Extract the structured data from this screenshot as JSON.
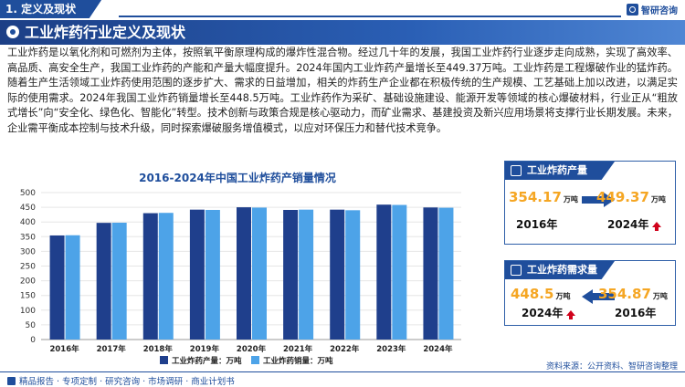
{
  "section": {
    "label": "1. 定义及现状"
  },
  "brand": {
    "name": "智研咨询"
  },
  "page_title": "工业炸药行业定义及现状",
  "paragraph": "工业炸药是以氧化剂和可燃剂为主体，按照氧平衡原理构成的爆炸性混合物。经过几十年的发展，我国工业炸药行业逐步走向成熟，实现了高效率、高品质、高安全生产，我国工业炸药的产能和产量大幅度提升。2024年国内工业炸药产量增长至449.37万吨。工业炸药是工程爆破作业的猛炸药。随着生产生活领域工业炸药使用范围的逐步扩大、需求的日益增加，相关的炸药生产企业都在积极传统的生产规模、工艺基础上加以改进，以满足实际的使用需求。2024年我国工业炸药销量增长至448.5万吨。工业炸药作为采矿、基础设施建设、能源开发等领域的核心爆破材料，行业正从“粗放式增长”向“安全化、绿色化、智能化”转型。技术创新与政策合规是核心驱动力，而矿业需求、基建投资及新兴应用场景将支撑行业长期发展。未来，企业需平衡成本控制与技术升级，同时探索爆破服务增值模式，以应对环保压力和替代技术竞争。",
  "chart_data": {
    "type": "bar",
    "title": "2016-2024年中国工业炸药产销量情况",
    "categories": [
      "2016年",
      "2017年",
      "2018年",
      "2019年",
      "2020年",
      "2021年",
      "2022年",
      "2023年",
      "2024年"
    ],
    "series": [
      {
        "name": "工业炸药产量：万吨",
        "values": [
          354.17,
          397.0,
          430.0,
          442.0,
          450.0,
          441.0,
          442.0,
          459.0,
          449.37
        ]
      },
      {
        "name": "工业炸药销量：万吨",
        "values": [
          354.87,
          397.5,
          431.0,
          441.0,
          449.0,
          442.0,
          440.0,
          458.0,
          448.5
        ]
      }
    ],
    "ylim": [
      0,
      500
    ],
    "yticks": [
      "0",
      "50",
      "100",
      "150",
      "200",
      "250",
      "300",
      "350",
      "400",
      "450",
      "500"
    ],
    "colors": [
      "#1f3f8c",
      "#4da3e8"
    ]
  },
  "production_card": {
    "title": "工业炸药产量",
    "left_value": "354.17",
    "left_unit": "万吨",
    "left_year": "2016年",
    "right_value": "449.37",
    "right_unit": "万吨",
    "right_year": "2024年"
  },
  "sales_card": {
    "title": "工业炸药需求量",
    "left_value": "448.5",
    "left_unit": "万吨",
    "left_year": "2024年",
    "right_value": "354.87",
    "right_unit": "万吨",
    "right_year": "2016年"
  },
  "footer": {
    "left": "精品报告 · 专项定制 · 研究咨询 · 市场调研 · 商业计划书",
    "source": "资料来源：公开资料、智研咨询整理"
  }
}
